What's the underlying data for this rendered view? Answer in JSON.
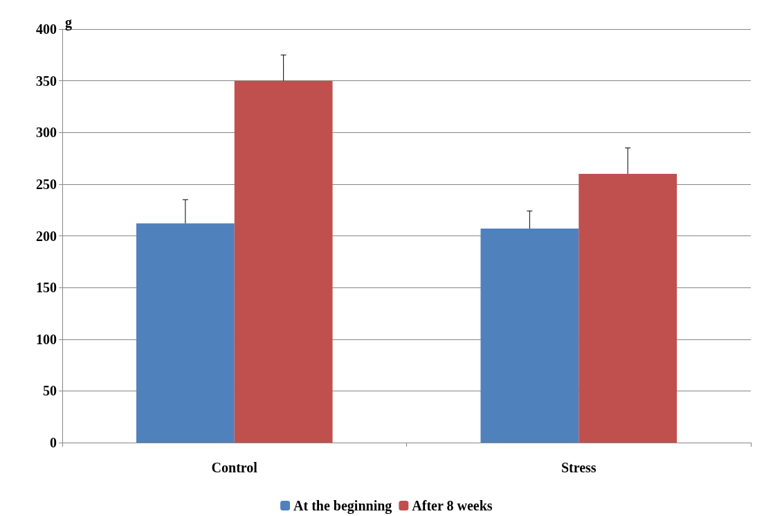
{
  "chart_data": {
    "type": "bar",
    "ylabel": "g",
    "categories": [
      "Control",
      "Stress"
    ],
    "series": [
      {
        "name": "At the beginning",
        "color": "#4f81bd",
        "values": [
          212,
          207
        ],
        "errors": [
          [
            212,
            235
          ],
          [
            207,
            224
          ]
        ]
      },
      {
        "name": "After 8 weeks",
        "color": "#c0504d",
        "values": [
          350,
          260
        ],
        "errors": [
          [
            350,
            375
          ],
          [
            260,
            285
          ]
        ]
      }
    ],
    "ylim": [
      0,
      400
    ],
    "yticks": [
      0,
      50,
      100,
      150,
      200,
      250,
      300,
      350,
      400
    ],
    "grid": "y",
    "legend": "bottom"
  }
}
